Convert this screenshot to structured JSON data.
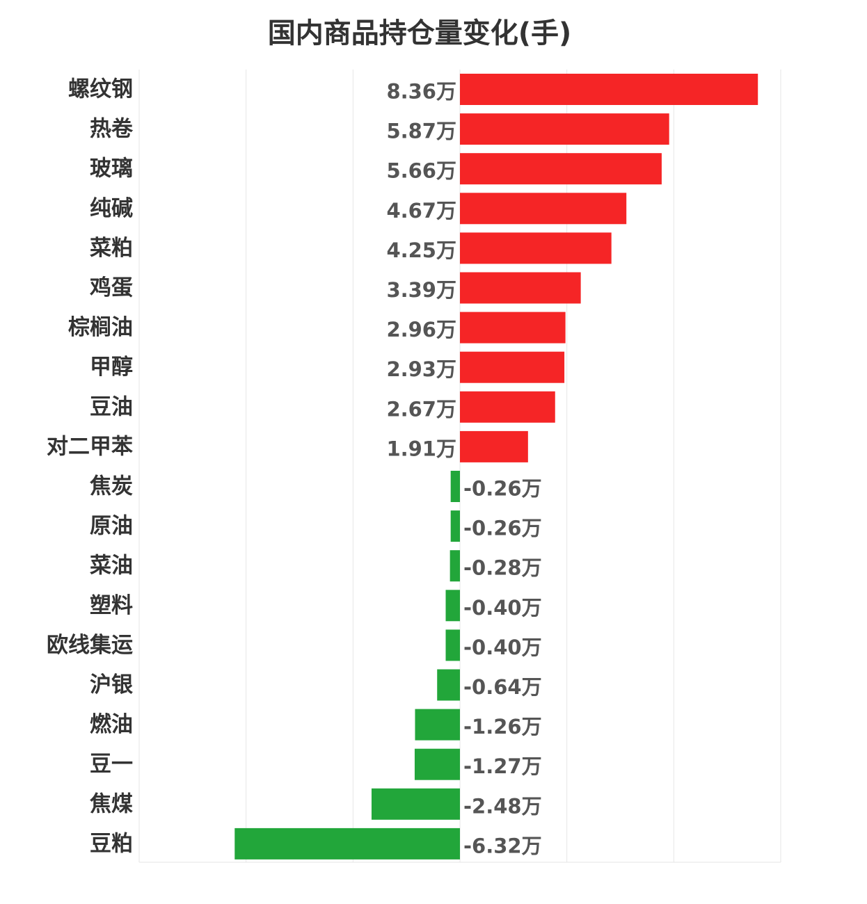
{
  "chart_data": {
    "type": "bar",
    "orientation": "horizontal",
    "title": "国内商品持仓量变化(手)",
    "value_unit": "万",
    "categories": [
      "螺纹钢",
      "热卷",
      "玻璃",
      "纯碱",
      "菜粕",
      "鸡蛋",
      "棕榈油",
      "甲醇",
      "豆油",
      "对二甲苯",
      "焦炭",
      "原油",
      "菜油",
      "塑料",
      "欧线集运",
      "沪银",
      "燃油",
      "豆一",
      "焦煤",
      "豆粕"
    ],
    "values": [
      8.36,
      5.87,
      5.66,
      4.67,
      4.25,
      3.39,
      2.96,
      2.93,
      2.67,
      1.91,
      -0.26,
      -0.26,
      -0.28,
      -0.4,
      -0.4,
      -0.64,
      -1.26,
      -1.27,
      -2.48,
      -6.32
    ],
    "value_labels": [
      "8.36万",
      "5.87万",
      "5.66万",
      "4.67万",
      "4.25万",
      "3.39万",
      "2.96万",
      "2.93万",
      "2.67万",
      "1.91万",
      "-0.26万",
      "-0.26万",
      "-0.28万",
      "-0.40万",
      "-0.40万",
      "-0.64万",
      "-1.26万",
      "-1.27万",
      "-2.48万",
      "-6.32万"
    ],
    "xlim": [
      -9,
      9
    ],
    "grid": true,
    "legend": "none",
    "colors": {
      "positive": "#f52526",
      "negative": "#22a63a",
      "grid": "#e6e6e6"
    }
  }
}
